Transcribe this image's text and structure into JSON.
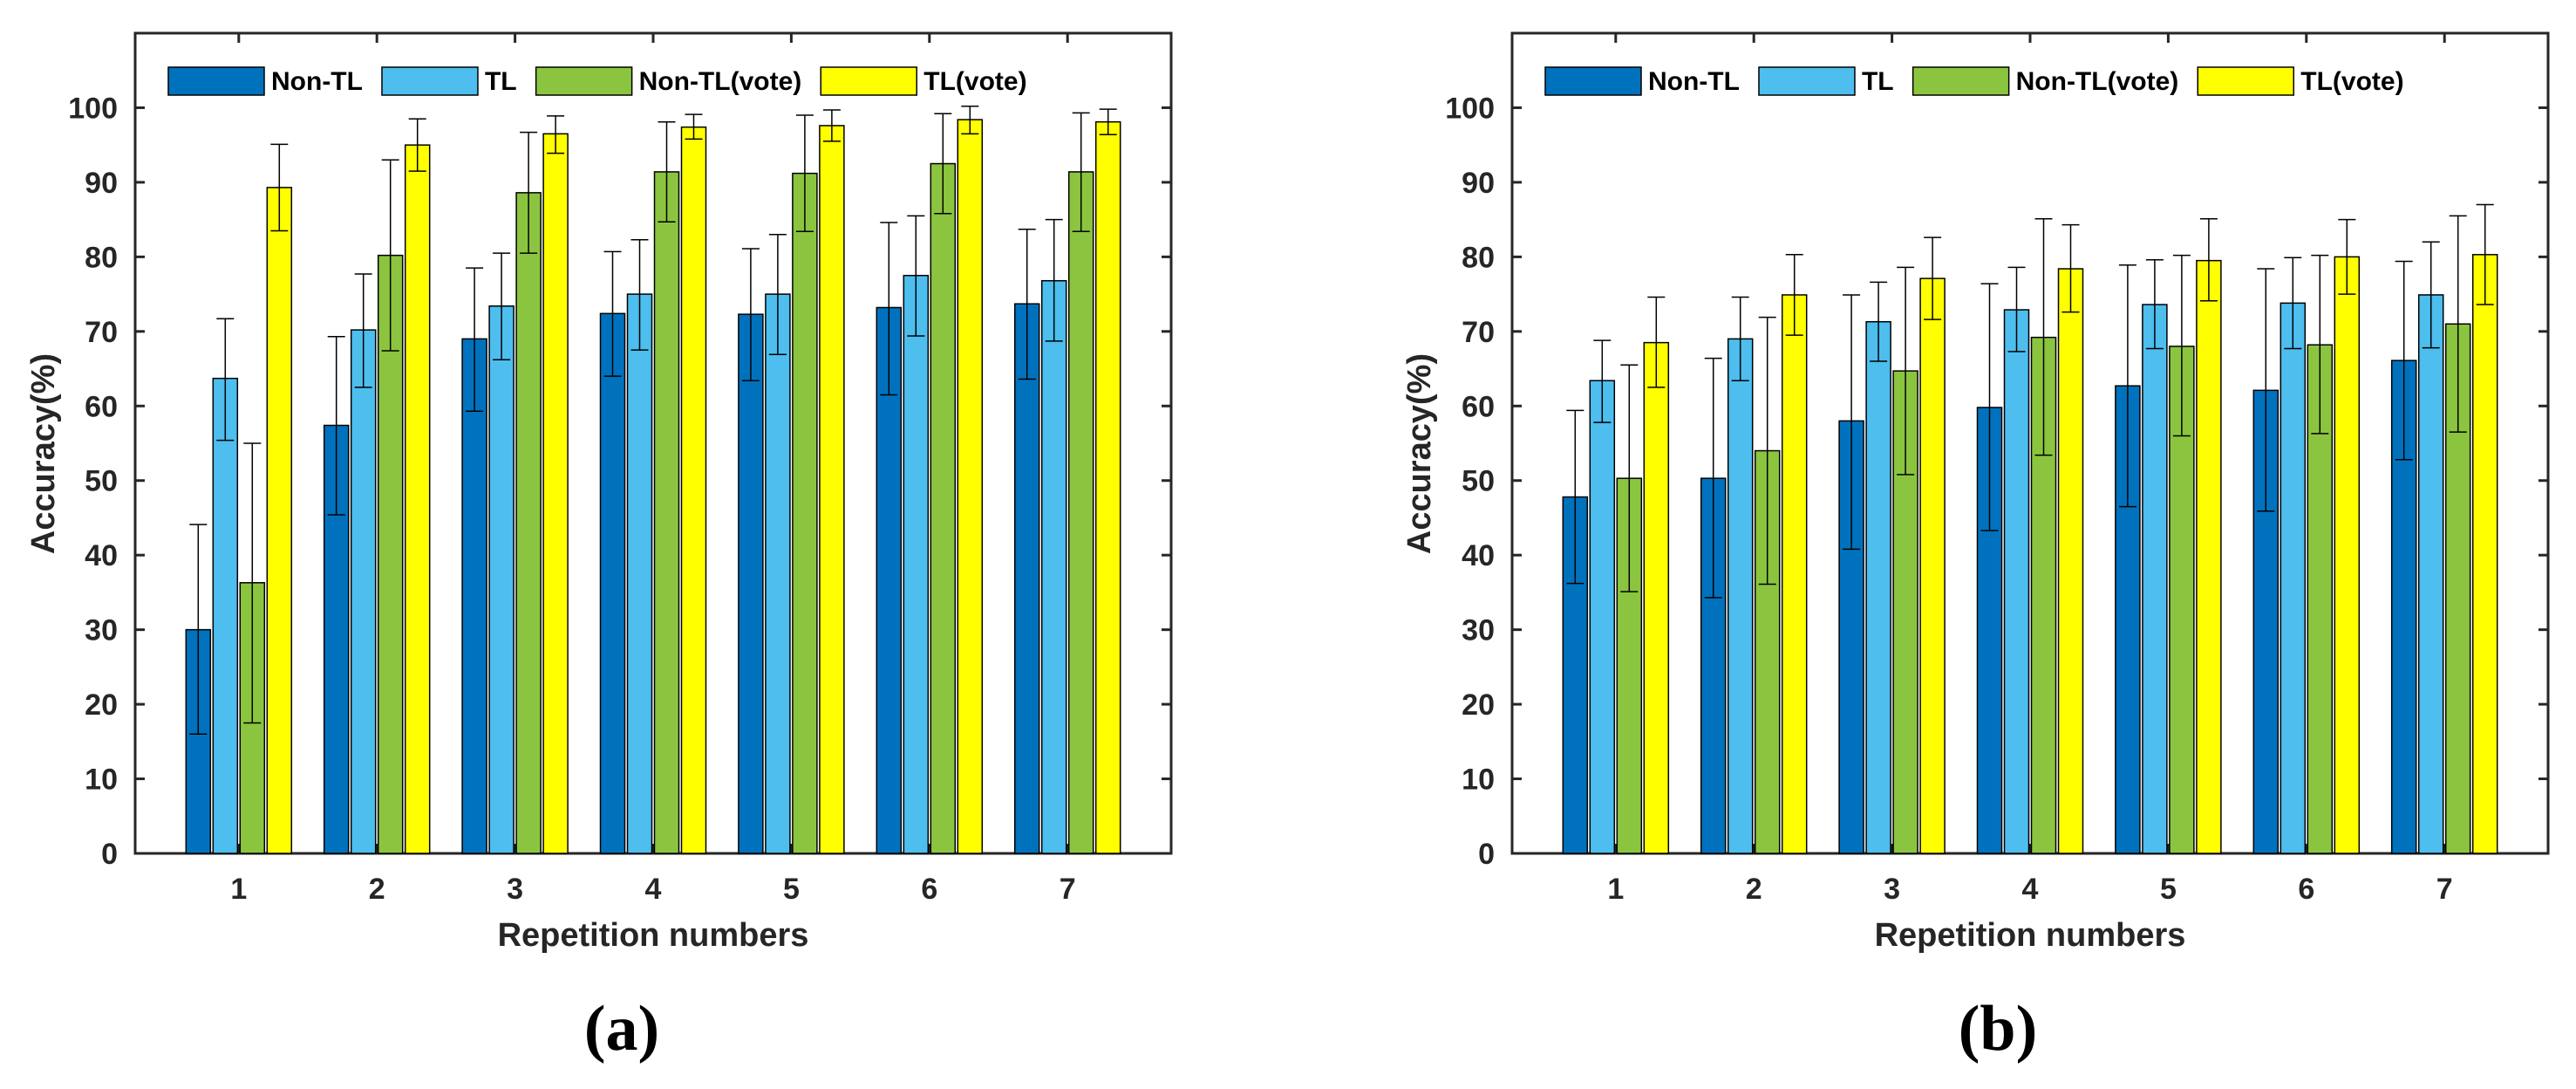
{
  "series_style": [
    {
      "name": "Non-TL",
      "color": "#0072BD"
    },
    {
      "name": "TL",
      "color": "#4DBEEE"
    },
    {
      "name": "Non-TL(vote)",
      "color": "#8BC53F"
    },
    {
      "name": "TL(vote)",
      "color": "#FFFF00"
    }
  ],
  "chart_data": [
    {
      "type": "bar",
      "panel_label": "(a)",
      "xlabel": "Repetition numbers",
      "ylabel": "Accuracy(%)",
      "ylim": [
        0,
        110
      ],
      "yticks": [
        0,
        10,
        20,
        30,
        40,
        50,
        60,
        70,
        80,
        90,
        100
      ],
      "categories": [
        "1",
        "2",
        "3",
        "4",
        "5",
        "6",
        "7"
      ],
      "legend_position": "top-left",
      "series": [
        {
          "name": "Non-TL",
          "values": [
            30,
            57.4,
            69,
            72.4,
            72.3,
            73.2,
            73.7
          ],
          "err_low": [
            16,
            45.4,
            59.3,
            64,
            63.4,
            61.5,
            63.6
          ],
          "err_high": [
            44.1,
            69.3,
            78.5,
            80.7,
            81.1,
            84.6,
            83.7
          ]
        },
        {
          "name": "TL",
          "values": [
            63.7,
            70.2,
            73.4,
            75,
            75,
            77.5,
            76.8
          ],
          "err_low": [
            55.4,
            62.5,
            66.2,
            67.5,
            66.9,
            69.4,
            68.7
          ],
          "err_high": [
            71.7,
            77.7,
            80.5,
            82.3,
            83,
            85.5,
            85
          ]
        },
        {
          "name": "Non-TL(vote)",
          "values": [
            36.3,
            80.2,
            88.6,
            91.4,
            91.2,
            92.5,
            91.4
          ],
          "err_low": [
            17.5,
            67.4,
            80.5,
            84.7,
            83.4,
            85.8,
            83.4
          ],
          "err_high": [
            55,
            93,
            96.7,
            98.1,
            99,
            99.2,
            99.3
          ]
        },
        {
          "name": "TL(vote)",
          "values": [
            89.3,
            95,
            96.5,
            97.4,
            97.6,
            98.4,
            98.1
          ],
          "err_low": [
            83.5,
            91.5,
            93.9,
            95.8,
            95.5,
            96.5,
            96.4
          ],
          "err_high": [
            95.1,
            98.5,
            98.9,
            99.1,
            99.7,
            100.2,
            99.8
          ]
        }
      ]
    },
    {
      "type": "bar",
      "panel_label": "(b)",
      "xlabel": "Repetition numbers",
      "ylabel": "Accuracy(%)",
      "ylim": [
        0,
        110
      ],
      "yticks": [
        0,
        10,
        20,
        30,
        40,
        50,
        60,
        70,
        80,
        90,
        100
      ],
      "categories": [
        "1",
        "2",
        "3",
        "4",
        "5",
        "6",
        "7"
      ],
      "legend_position": "top-left",
      "series": [
        {
          "name": "Non-TL",
          "values": [
            47.8,
            50.3,
            58,
            59.8,
            62.7,
            62.1,
            66.1
          ],
          "err_low": [
            36.2,
            34.3,
            40.8,
            43.3,
            46.5,
            45.9,
            52.8
          ],
          "err_high": [
            59.4,
            66.4,
            74.9,
            76.4,
            78.9,
            78.4,
            79.4
          ]
        },
        {
          "name": "TL",
          "values": [
            63.4,
            69,
            71.3,
            72.9,
            73.6,
            73.8,
            74.9
          ],
          "err_low": [
            57.8,
            63.4,
            66,
            67.3,
            67.7,
            67.7,
            67.8
          ],
          "err_high": [
            68.8,
            74.6,
            76.6,
            78.6,
            79.6,
            79.9,
            82
          ]
        },
        {
          "name": "Non-TL(vote)",
          "values": [
            50.3,
            54,
            64.7,
            69.2,
            68,
            68.2,
            71
          ],
          "err_low": [
            35.1,
            36.1,
            50.8,
            53.4,
            56,
            56.3,
            56.5
          ],
          "err_high": [
            65.5,
            71.9,
            78.6,
            85.1,
            80.2,
            80.2,
            85.5
          ]
        },
        {
          "name": "TL(vote)",
          "values": [
            68.5,
            74.9,
            77.1,
            78.4,
            79.5,
            80,
            80.3
          ],
          "err_low": [
            62.5,
            69.5,
            71.6,
            72.6,
            74.1,
            75,
            73.6
          ],
          "err_high": [
            74.6,
            80.3,
            82.6,
            84.3,
            85.1,
            85,
            87
          ]
        }
      ]
    }
  ]
}
